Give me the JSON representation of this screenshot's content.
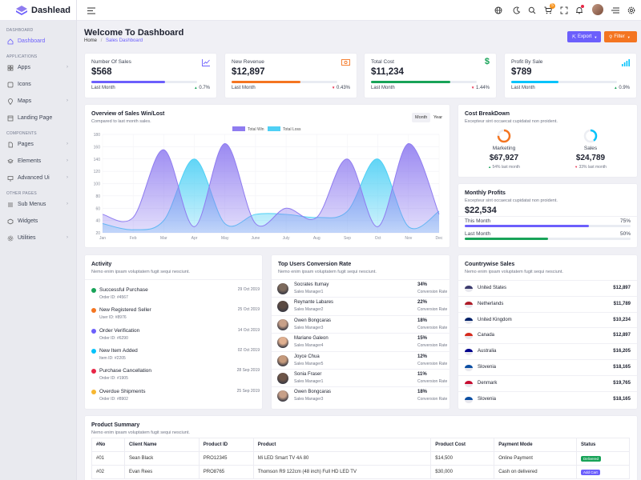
{
  "brand": {
    "name": "Dashlead"
  },
  "sidebar": {
    "sections": [
      {
        "label": "DASHBOARD"
      },
      {
        "label": "APPLICATIONS"
      },
      {
        "label": "COMPONENTS"
      },
      {
        "label": "OTHER PAGES"
      }
    ],
    "items": [
      {
        "label": "Dashboard",
        "icon": "home-icon",
        "active": true
      },
      {
        "label": "Apps",
        "icon": "grid-icon",
        "has_children": true
      },
      {
        "label": "Icons",
        "icon": "icons-icon"
      },
      {
        "label": "Maps",
        "icon": "map-pin-icon",
        "has_children": true
      },
      {
        "label": "Landing Page",
        "icon": "layout-icon"
      },
      {
        "label": "Pages",
        "icon": "file-icon",
        "has_children": true
      },
      {
        "label": "Elements",
        "icon": "layers-icon",
        "has_children": true
      },
      {
        "label": "Advanced Ui",
        "icon": "monitor-icon",
        "has_children": true
      },
      {
        "label": "Sub Menus",
        "icon": "menu-icon",
        "has_children": true
      },
      {
        "label": "Widgets",
        "icon": "package-icon"
      },
      {
        "label": "Utilities",
        "icon": "settings-icon",
        "has_children": true
      }
    ]
  },
  "header": {
    "cart_count": "5",
    "icons": [
      "menu-toggle-icon",
      "globe-icon",
      "moon-icon",
      "search-icon",
      "cart-icon",
      "fullscreen-icon",
      "bell-icon",
      "avatar",
      "list-icon",
      "gear-icon"
    ]
  },
  "page": {
    "title": "Welcome To Dashboard",
    "breadcrumb_home": "Home",
    "breadcrumb_sep": "/",
    "breadcrumb_current": "Sales Dashboard",
    "export_label": "Export",
    "filter_label": "Filter"
  },
  "stats": [
    {
      "title": "Number Of Sales",
      "value": "$568",
      "footer": "Last Month",
      "change": "0.7%",
      "trend": "up",
      "progress": 0.7,
      "color": "#6c5ffc"
    },
    {
      "title": "New Revenue",
      "value": "$12,897",
      "footer": "Last Month",
      "change": "0.43%",
      "trend": "down",
      "progress": 0.65,
      "color": "#f47521"
    },
    {
      "title": "Total Cost",
      "value": "$11,234",
      "footer": "Last Month",
      "change": "1.44%",
      "trend": "down",
      "progress": 0.75,
      "color": "#18a358"
    },
    {
      "title": "Profit By Sale",
      "value": "$789",
      "footer": "Last Month",
      "change": "0.9%",
      "trend": "up",
      "progress": 0.45,
      "color": "#05c3fb"
    }
  ],
  "overview": {
    "title": "Overview of Sales Win/Lost",
    "subtitle": "Compared to last month sales.",
    "tabs": [
      "Month",
      "Year"
    ]
  },
  "chart_data": {
    "type": "area",
    "categories": [
      "Jan",
      "Feb",
      "Mar",
      "Apr",
      "May",
      "June",
      "July",
      "Aug",
      "Sep",
      "Oct",
      "Nov",
      "Dec"
    ],
    "series": [
      {
        "name": "Total Win",
        "values": [
          50,
          45,
          155,
          30,
          165,
          35,
          60,
          45,
          140,
          30,
          165,
          50
        ],
        "color": "#8f7cf0"
      },
      {
        "name": "Total Loss",
        "values": [
          35,
          25,
          40,
          140,
          35,
          50,
          50,
          45,
          55,
          140,
          30,
          55
        ],
        "color": "#4fd0f5"
      }
    ],
    "y_ticks": [
      20,
      40,
      60,
      80,
      100,
      120,
      140,
      160,
      180
    ],
    "ylim": [
      20,
      180
    ],
    "legend": "top-center",
    "grid": true
  },
  "cost": {
    "title": "Cost BreakDown",
    "subtitle": "Excepteur sint occaecat cupidatat non proident.",
    "items": [
      {
        "label": "Marketing",
        "value": "$67,927",
        "change": "54% last month",
        "trend": "up",
        "color": "#f47521",
        "fraction": 0.75
      },
      {
        "label": "Sales",
        "value": "$24,789",
        "change": "33% last month",
        "trend": "down",
        "color": "#05c3fb",
        "fraction": 0.4
      }
    ]
  },
  "profits": {
    "title": "Monthly Profits",
    "subtitle": "Excepteur sint occaecat cupidatat non proident.",
    "value": "$22,534",
    "rows": [
      {
        "label": "This Month",
        "percent": "75%",
        "fraction": 0.75,
        "color": "#6c5ffc"
      },
      {
        "label": "Last Month",
        "percent": "50%",
        "fraction": 0.5,
        "color": "#18a358"
      }
    ]
  },
  "activity": {
    "title": "Activity",
    "subtitle": "Nemo enim ipsam voluptatem fugit sequi nesciunt.",
    "items": [
      {
        "title": "Successful Purchase",
        "sub": "Order ID: #4567",
        "date": "29 Oct 2019",
        "color": "#18a358"
      },
      {
        "title": "New Registered Seller",
        "sub": "User ID: #8976",
        "date": "25 Oct 2019",
        "color": "#f47521"
      },
      {
        "title": "Order Verification",
        "sub": "Order ID: #6290",
        "date": "14 Oct 2019",
        "color": "#6c5ffc"
      },
      {
        "title": "New Item Added",
        "sub": "Item ID: #2205",
        "date": "02 Oct 2019",
        "color": "#05c3fb"
      },
      {
        "title": "Purchase Cancellation",
        "sub": "Order ID: #1905",
        "date": "28 Sep 2019",
        "color": "#e82646"
      },
      {
        "title": "Overdue Shipments",
        "sub": "Order ID: #8902",
        "date": "25 Sep 2019",
        "color": "#f7b731"
      }
    ]
  },
  "conversion": {
    "title": "Top Users Conversion Rate",
    "subtitle": "Nemo enim ipsam voluptatem fugit sequi nesciunt.",
    "users": [
      {
        "name": "Socrates Itumay",
        "role": "Sales Manager1",
        "rate": "34%",
        "label": "Conversion Rate"
      },
      {
        "name": "Reynante Labares",
        "role": "Sales Manager2",
        "rate": "22%",
        "label": "Conversion Rate"
      },
      {
        "name": "Owen Bongcaras",
        "role": "Sales Manager3",
        "rate": "18%",
        "label": "Conversion Rate"
      },
      {
        "name": "Mariane Galeon",
        "role": "Sales Manager4",
        "rate": "15%",
        "label": "Conversion Rate"
      },
      {
        "name": "Joyce Chua",
        "role": "Sales Manager5",
        "rate": "12%",
        "label": "Conversion Rate"
      },
      {
        "name": "Sonia Fraser",
        "role": "Sales Manager1",
        "rate": "11%",
        "label": "Conversion Rate"
      },
      {
        "name": "Owen Bongcaras",
        "role": "Sales Manager3",
        "rate": "18%",
        "label": "Conversion Rate"
      }
    ]
  },
  "countries": {
    "title": "Countrywise Sales",
    "subtitle": "Nemo enim ipsam voluptatem fugit sequi nesciunt.",
    "items": [
      {
        "name": "United States",
        "value": "$12,897",
        "color": "#3c3b6e"
      },
      {
        "name": "Netherlands",
        "value": "$11,789",
        "color": "#ae1c28"
      },
      {
        "name": "United Kingdom",
        "value": "$10,234",
        "color": "#012169"
      },
      {
        "name": "Canada",
        "value": "$12,897",
        "color": "#d52b1e"
      },
      {
        "name": "Australia",
        "value": "$16,205",
        "color": "#00008b"
      },
      {
        "name": "Slovenia",
        "value": "$18,165",
        "color": "#0b4ea2"
      },
      {
        "name": "Denmark",
        "value": "$19,765",
        "color": "#c60c30"
      },
      {
        "name": "Slovenia",
        "value": "$18,165",
        "color": "#0b4ea2"
      }
    ]
  },
  "summary": {
    "title": "Product Summary",
    "subtitle": "Nemo enim ipsam voluptatem fugit sequi nesciunt.",
    "columns": [
      "#No",
      "Client Name",
      "Product ID",
      "Product",
      "Product Cost",
      "Payment Mode",
      "Status"
    ],
    "rows": [
      [
        "#01",
        "Sean Black",
        "PRO12345",
        "Mi LED Smart TV 4A 80",
        "$14,500",
        "Online Payment",
        "Delivered"
      ],
      [
        "#02",
        "Evan Rees",
        "PRO8765",
        "Thomson R9 122cm (48 inch) Full HD LED TV",
        "$30,000",
        "Cash on delivered",
        "Add Cart"
      ]
    ],
    "status_colors": {
      "Delivered": "#18a358",
      "Add Cart": "#6c5ffc"
    }
  }
}
